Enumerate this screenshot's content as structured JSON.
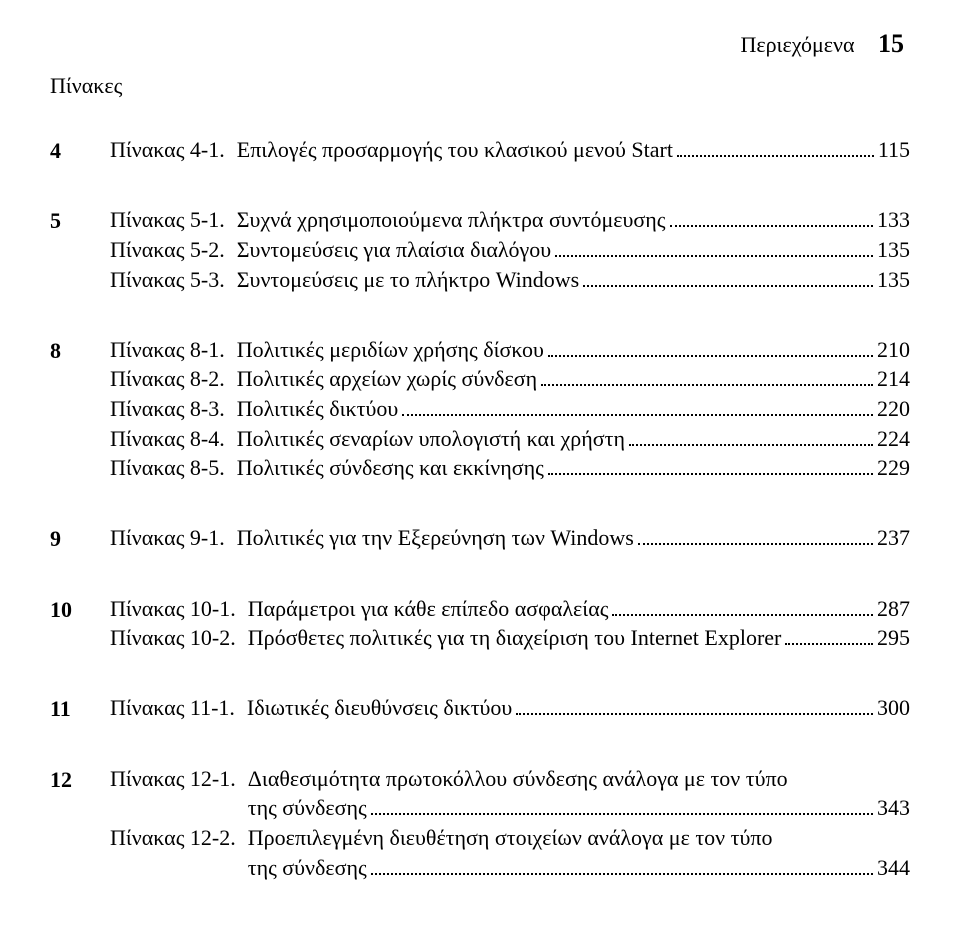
{
  "header": {
    "label": "Περιεχόμενα",
    "page_number": "15"
  },
  "section_title": "Πίνακες",
  "text_color": "#000000",
  "background_color": "#ffffff",
  "font_family": "Times New Roman",
  "base_fontsize_pt": 16,
  "chapters": [
    {
      "num": "4",
      "entries": [
        {
          "label": "Πίνακας 4-1.",
          "title": "Επιλογές προσαρμογής του κλασικού μενού Start",
          "page": "115"
        }
      ]
    },
    {
      "num": "5",
      "entries": [
        {
          "label": "Πίνακας 5-1.",
          "title": "Συχνά χρησιμοποιούμενα πλήκτρα συντόμευσης",
          "page": "133"
        },
        {
          "label": "Πίνακας 5-2.",
          "title": "Συντομεύσεις για πλαίσια διαλόγου",
          "page": "135"
        },
        {
          "label": "Πίνακας 5-3.",
          "title": "Συντομεύσεις με το πλήκτρο Windows",
          "page": "135"
        }
      ]
    },
    {
      "num": "8",
      "entries": [
        {
          "label": "Πίνακας 8-1.",
          "title": "Πολιτικές μεριδίων χρήσης δίσκου",
          "page": "210"
        },
        {
          "label": "Πίνακας 8-2.",
          "title": "Πολιτικές αρχείων χωρίς σύνδεση",
          "page": "214"
        },
        {
          "label": "Πίνακας 8-3.",
          "title": "Πολιτικές δικτύου",
          "page": "220"
        },
        {
          "label": "Πίνακας 8-4.",
          "title": "Πολιτικές σεναρίων υπολογιστή και χρήστη",
          "page": "224"
        },
        {
          "label": "Πίνακας 8-5.",
          "title": "Πολιτικές σύνδεσης και εκκίνησης",
          "page": "229"
        }
      ]
    },
    {
      "num": "9",
      "entries": [
        {
          "label": "Πίνακας 9-1.",
          "title": "Πολιτικές για την Εξερεύνηση των Windows",
          "page": "237"
        }
      ]
    },
    {
      "num": "10",
      "entries": [
        {
          "label": "Πίνακας 10-1.",
          "title": "Παράμετροι για κάθε επίπεδο ασφαλείας",
          "page": "287"
        },
        {
          "label": "Πίνακας 10-2.",
          "title": "Πρόσθετες πολιτικές για τη διαχείριση του Internet Explorer",
          "page": "295"
        }
      ]
    },
    {
      "num": "11",
      "entries": [
        {
          "label": "Πίνακας 11-1.",
          "title": "Ιδιωτικές διευθύνσεις δικτύου",
          "page": "300"
        }
      ]
    },
    {
      "num": "12",
      "entries": [
        {
          "label": "Πίνακας 12-1.",
          "title_line1": "Διαθεσιμότητα πρωτοκόλλου σύνδεσης ανάλογα με τον τύπο",
          "title_line2": "της σύνδεσης",
          "page": "343",
          "wrapped": true
        },
        {
          "label": "Πίνακας 12-2.",
          "title_line1": "Προεπιλεγμένη διευθέτηση στοιχείων ανάλογα με τον τύπο",
          "title_line2": "της σύνδεσης",
          "page": "344",
          "wrapped": true
        }
      ]
    }
  ]
}
